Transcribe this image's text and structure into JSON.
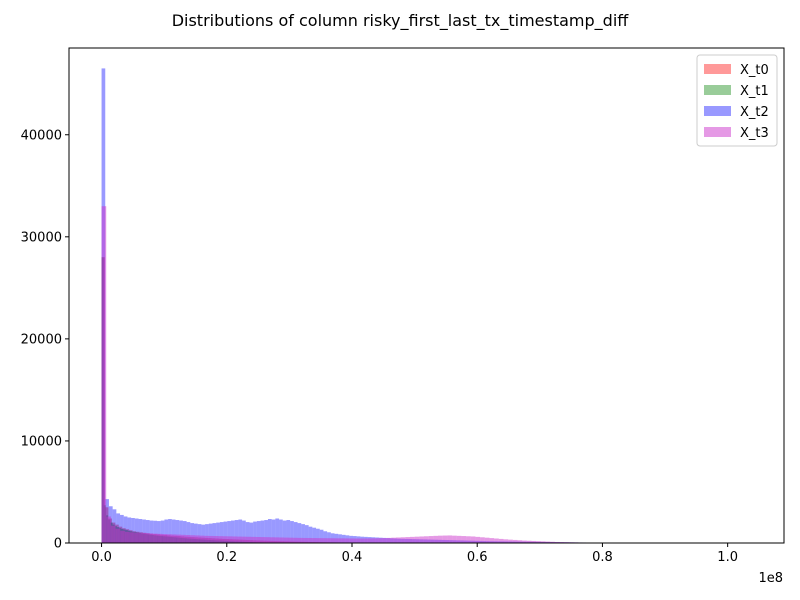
{
  "chart_data": {
    "type": "histogram",
    "title": "Distributions of column risky_first_last_tx_timestamp_diff",
    "xlabel": "",
    "ylabel": "",
    "x_offset_label": "1e8",
    "xlim": [
      -0.052,
      1.09
    ],
    "ylim": [
      0,
      48500
    ],
    "x_ticks": [
      0.0,
      0.2,
      0.4,
      0.6,
      0.8,
      1.0
    ],
    "x_tick_labels": [
      "0.0",
      "0.2",
      "0.4",
      "0.6",
      "0.8",
      "1.0"
    ],
    "y_ticks": [
      0,
      10000,
      20000,
      30000,
      40000
    ],
    "y_tick_labels": [
      "0",
      "10000",
      "20000",
      "30000",
      "40000"
    ],
    "grid": false,
    "legend_position": "upper right",
    "series": [
      {
        "name": "X_t0",
        "color": "#ff0000",
        "alpha": 0.4,
        "bin_range": [
          0.0,
          0.55
        ],
        "bins": 100,
        "values": [
          28000,
          3500,
          2400,
          2000,
          1800,
          1600,
          1450,
          1350,
          1250,
          1150,
          1100,
          1050,
          1000,
          950,
          900,
          870,
          840,
          810,
          780,
          750,
          720,
          700,
          680,
          650,
          620,
          600,
          580,
          560,
          540,
          520,
          500,
          480,
          460,
          440,
          420,
          400,
          385,
          370,
          355,
          340,
          325,
          310,
          295,
          280,
          265,
          250,
          238,
          226,
          214,
          202,
          190,
          180,
          170,
          160,
          150,
          140,
          132,
          124,
          116,
          108,
          100,
          94,
          88,
          82,
          76,
          70,
          65,
          60,
          55,
          50,
          46,
          42,
          38,
          34,
          30,
          27,
          24,
          21,
          18,
          16,
          14,
          12,
          10,
          9,
          8,
          7,
          6,
          5,
          4,
          4,
          3,
          3,
          2,
          2,
          2,
          1,
          1,
          1,
          1,
          1
        ]
      },
      {
        "name": "X_t1",
        "color": "#008000",
        "alpha": 0.4,
        "bin_range": [
          0.0,
          0.35
        ],
        "bins": 100,
        "values": [
          28000,
          3700,
          2700,
          2300,
          2000,
          1800,
          1650,
          1550,
          1450,
          1380,
          1320,
          1260,
          1200,
          1150,
          1100,
          1060,
          1020,
          980,
          940,
          900,
          870,
          840,
          810,
          780,
          750,
          720,
          700,
          680,
          660,
          640,
          620,
          600,
          580,
          560,
          540,
          520,
          500,
          480,
          460,
          440,
          425,
          410,
          395,
          380,
          365,
          350,
          335,
          320,
          305,
          290,
          278,
          266,
          254,
          242,
          230,
          218,
          206,
          194,
          182,
          170,
          160,
          150,
          140,
          130,
          120,
          112,
          104,
          96,
          88,
          80,
          74,
          68,
          62,
          56,
          50,
          45,
          40,
          36,
          32,
          28,
          24,
          20,
          17,
          14,
          12,
          10,
          8,
          6,
          5,
          4,
          3,
          3,
          2,
          2,
          1,
          1,
          1,
          1,
          0,
          0
        ]
      },
      {
        "name": "X_t2",
        "color": "#0000ff",
        "alpha": 0.4,
        "bin_range": [
          0.0,
          0.945
        ],
        "bins": 160,
        "values": [
          46500,
          4300,
          3600,
          3300,
          2900,
          2750,
          2600,
          2500,
          2450,
          2400,
          2350,
          2300,
          2250,
          2200,
          2180,
          2150,
          2200,
          2300,
          2350,
          2300,
          2250,
          2200,
          2150,
          2050,
          1950,
          1900,
          1850,
          1800,
          1850,
          1900,
          1950,
          2000,
          2050,
          2100,
          2150,
          2200,
          2250,
          2300,
          2200,
          2050,
          2000,
          2100,
          2150,
          2200,
          2250,
          2350,
          2300,
          2400,
          2300,
          2200,
          2250,
          2150,
          2050,
          1950,
          1850,
          1750,
          1600,
          1500,
          1400,
          1300,
          1150,
          1050,
          950,
          900,
          850,
          800,
          750,
          700,
          680,
          650,
          620,
          600,
          580,
          560,
          540,
          520,
          500,
          480,
          460,
          440,
          420,
          410,
          400,
          390,
          380,
          370,
          360,
          350,
          340,
          330,
          320,
          310,
          300,
          290,
          280,
          270,
          260,
          250,
          240,
          230,
          220,
          210,
          200,
          190,
          180,
          175,
          170,
          165,
          160,
          155,
          150,
          145,
          140,
          135,
          130,
          125,
          120,
          115,
          110,
          105,
          100,
          95,
          90,
          85,
          80,
          75,
          70,
          65,
          60,
          55,
          52,
          49,
          46,
          43,
          40,
          37,
          34,
          31,
          28,
          25,
          22,
          20,
          18,
          16,
          14,
          12,
          10,
          9,
          8,
          7,
          6,
          5,
          4,
          3,
          3,
          2,
          2,
          1,
          1,
          1
        ]
      },
      {
        "name": "X_t3",
        "color": "#cc33cc",
        "alpha": 0.5,
        "bin_range": [
          0.0,
          1.045
        ],
        "bins": 140,
        "values": [
          33000,
          2600,
          1700,
          1400,
          1200,
          1100,
          1050,
          1000,
          980,
          960,
          940,
          920,
          900,
          880,
          860,
          840,
          820,
          800,
          780,
          760,
          740,
          720,
          700,
          690,
          680,
          670,
          660,
          650,
          640,
          630,
          620,
          610,
          600,
          590,
          580,
          570,
          560,
          550,
          540,
          530,
          520,
          510,
          500,
          495,
          490,
          485,
          480,
          475,
          470,
          465,
          460,
          455,
          450,
          445,
          440,
          440,
          445,
          450,
          460,
          470,
          480,
          500,
          520,
          540,
          560,
          580,
          600,
          620,
          640,
          660,
          680,
          700,
          720,
          730,
          740,
          720,
          700,
          680,
          660,
          640,
          600,
          560,
          520,
          480,
          440,
          400,
          360,
          330,
          300,
          270,
          240,
          220,
          200,
          180,
          160,
          140,
          120,
          100,
          90,
          80,
          70,
          60,
          50,
          45,
          40,
          35,
          30,
          25,
          20,
          18,
          16,
          14,
          12,
          10,
          9,
          8,
          7,
          6,
          5,
          4,
          4,
          3,
          3,
          2,
          2,
          2,
          1,
          1,
          1,
          1,
          1,
          1,
          1,
          1,
          0,
          0,
          0,
          0,
          0,
          0
        ]
      }
    ]
  }
}
